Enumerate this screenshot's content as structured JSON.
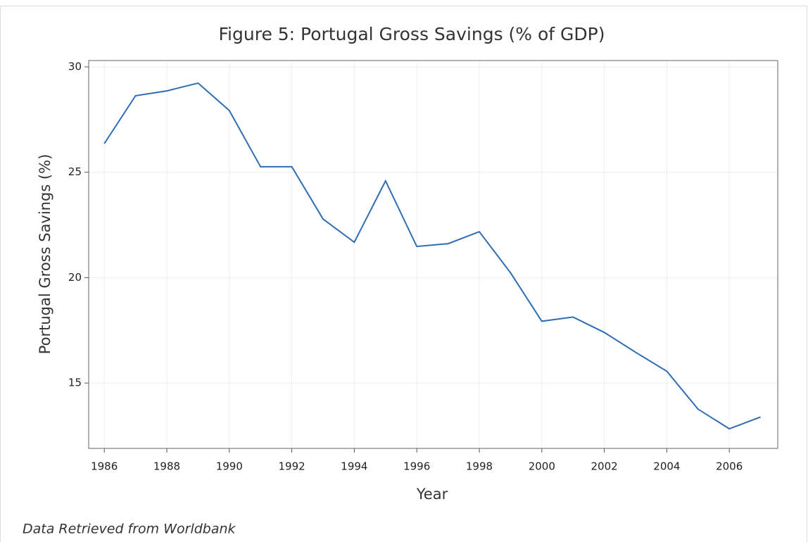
{
  "chart_data": {
    "type": "line",
    "title": "Figure 5: Portugal Gross Savings (% of GDP)",
    "x_label": "Year",
    "y_label": "Portugal Gross Savings (%)",
    "source": "Data Retrieved from Worldbank",
    "x": [
      1986,
      1987,
      1988,
      1989,
      1990,
      1991,
      1992,
      1993,
      1994,
      1995,
      1996,
      1997,
      1998,
      1999,
      2000,
      2001,
      2002,
      2003,
      2004,
      2005,
      2006,
      2007
    ],
    "series": [
      {
        "name": "Portugal Gross Savings",
        "color": "#2e6db4",
        "values": [
          26.36,
          28.63,
          28.86,
          29.23,
          27.93,
          25.26,
          25.26,
          22.78,
          21.68,
          24.59,
          21.48,
          21.61,
          22.18,
          20.23,
          17.93,
          18.13,
          17.4,
          16.46,
          15.56,
          13.76,
          12.83,
          13.39
        ]
      }
    ],
    "xlim": [
      1985.5,
      2007.55
    ],
    "xticks": [
      1986,
      1988,
      1990,
      1992,
      1994,
      1996,
      1998,
      2000,
      2002,
      2004,
      2006
    ],
    "ylim": [
      11.9,
      30.3
    ],
    "yticks": [
      15,
      20,
      25,
      30
    ],
    "grid": true
  }
}
